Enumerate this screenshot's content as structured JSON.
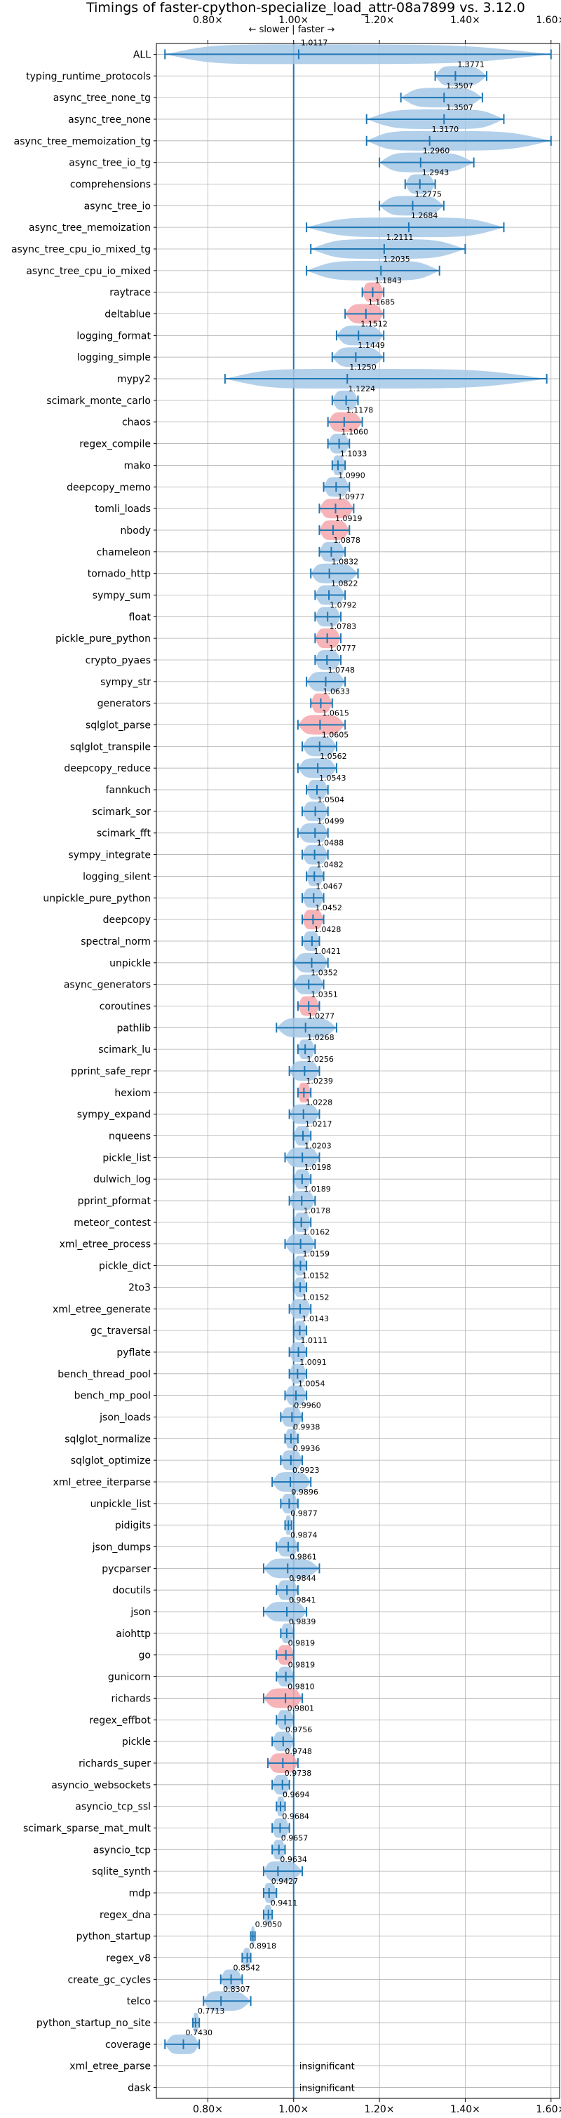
{
  "colors": {
    "faster": "#1f77b4",
    "faster_fill": "#a6c8e6",
    "slower_fill": "#f4a7ad",
    "grid": "#b0b0b0",
    "reference_line": "#1f77b4"
  },
  "chart_data": {
    "type": "violin",
    "title": "Timings of faster-cpython-specialize_load_attr-08a7899 vs. 3.12.0",
    "annotation": "← slower | faster →",
    "xlim": [
      0.68,
      1.62
    ],
    "reference_x": 1.0,
    "grid": true,
    "x_ticks": [
      0.8,
      1.0,
      1.2,
      1.4,
      1.6
    ],
    "x_tick_labels": [
      "0.80×",
      "1.00×",
      "1.20×",
      "1.40×",
      "1.60×"
    ],
    "benchmarks": [
      {
        "name": "ALL",
        "value": 1.0117,
        "label": "1.0117",
        "min": 0.7,
        "max": 1.6,
        "slower": false
      },
      {
        "name": "typing_runtime_protocols",
        "value": 1.3771,
        "label": "1.3771",
        "min": 1.33,
        "max": 1.45,
        "slower": false
      },
      {
        "name": "async_tree_none_tg",
        "value": 1.3507,
        "label": "1.3507",
        "min": 1.25,
        "max": 1.44,
        "slower": false
      },
      {
        "name": "async_tree_none",
        "value": 1.3507,
        "label": "1.3507",
        "min": 1.17,
        "max": 1.49,
        "slower": false
      },
      {
        "name": "async_tree_memoization_tg",
        "value": 1.317,
        "label": "1.3170",
        "min": 1.17,
        "max": 1.6,
        "slower": false
      },
      {
        "name": "async_tree_io_tg",
        "value": 1.296,
        "label": "1.2960",
        "min": 1.2,
        "max": 1.42,
        "slower": false
      },
      {
        "name": "comprehensions",
        "value": 1.2943,
        "label": "1.2943",
        "min": 1.26,
        "max": 1.33,
        "slower": false
      },
      {
        "name": "async_tree_io",
        "value": 1.2775,
        "label": "1.2775",
        "min": 1.2,
        "max": 1.35,
        "slower": false
      },
      {
        "name": "async_tree_memoization",
        "value": 1.2684,
        "label": "1.2684",
        "min": 1.03,
        "max": 1.49,
        "slower": false
      },
      {
        "name": "async_tree_cpu_io_mixed_tg",
        "value": 1.2111,
        "label": "1.2111",
        "min": 1.04,
        "max": 1.4,
        "slower": false
      },
      {
        "name": "async_tree_cpu_io_mixed",
        "value": 1.2035,
        "label": "1.2035",
        "min": 1.03,
        "max": 1.34,
        "slower": false
      },
      {
        "name": "raytrace",
        "value": 1.1843,
        "label": "1.1843",
        "min": 1.16,
        "max": 1.21,
        "slower": true
      },
      {
        "name": "deltablue",
        "value": 1.1685,
        "label": "1.1685",
        "min": 1.12,
        "max": 1.21,
        "slower": true
      },
      {
        "name": "logging_format",
        "value": 1.1512,
        "label": "1.1512",
        "min": 1.1,
        "max": 1.21,
        "slower": false
      },
      {
        "name": "logging_simple",
        "value": 1.1449,
        "label": "1.1449",
        "min": 1.09,
        "max": 1.21,
        "slower": false
      },
      {
        "name": "mypy2",
        "value": 1.125,
        "label": "1.1250",
        "min": 0.84,
        "max": 1.59,
        "slower": false
      },
      {
        "name": "scimark_monte_carlo",
        "value": 1.1224,
        "label": "1.1224",
        "min": 1.09,
        "max": 1.15,
        "slower": false
      },
      {
        "name": "chaos",
        "value": 1.1178,
        "label": "1.1178",
        "min": 1.08,
        "max": 1.16,
        "slower": true
      },
      {
        "name": "regex_compile",
        "value": 1.106,
        "label": "1.1060",
        "min": 1.08,
        "max": 1.13,
        "slower": false
      },
      {
        "name": "mako",
        "value": 1.1033,
        "label": "1.1033",
        "min": 1.09,
        "max": 1.12,
        "slower": false
      },
      {
        "name": "deepcopy_memo",
        "value": 1.099,
        "label": "1.0990",
        "min": 1.07,
        "max": 1.13,
        "slower": false
      },
      {
        "name": "tomli_loads",
        "value": 1.0977,
        "label": "1.0977",
        "min": 1.06,
        "max": 1.14,
        "slower": true
      },
      {
        "name": "nbody",
        "value": 1.0919,
        "label": "1.0919",
        "min": 1.06,
        "max": 1.13,
        "slower": true
      },
      {
        "name": "chameleon",
        "value": 1.0878,
        "label": "1.0878",
        "min": 1.06,
        "max": 1.12,
        "slower": false
      },
      {
        "name": "tornado_http",
        "value": 1.0832,
        "label": "1.0832",
        "min": 1.04,
        "max": 1.15,
        "slower": false
      },
      {
        "name": "sympy_sum",
        "value": 1.0822,
        "label": "1.0822",
        "min": 1.05,
        "max": 1.12,
        "slower": false
      },
      {
        "name": "float",
        "value": 1.0792,
        "label": "1.0792",
        "min": 1.05,
        "max": 1.11,
        "slower": false
      },
      {
        "name": "pickle_pure_python",
        "value": 1.0783,
        "label": "1.0783",
        "min": 1.05,
        "max": 1.11,
        "slower": true
      },
      {
        "name": "crypto_pyaes",
        "value": 1.0777,
        "label": "1.0777",
        "min": 1.05,
        "max": 1.11,
        "slower": false
      },
      {
        "name": "sympy_str",
        "value": 1.0748,
        "label": "1.0748",
        "min": 1.03,
        "max": 1.12,
        "slower": false
      },
      {
        "name": "generators",
        "value": 1.0633,
        "label": "1.0633",
        "min": 1.04,
        "max": 1.09,
        "slower": true
      },
      {
        "name": "sqlglot_parse",
        "value": 1.0615,
        "label": "1.0615",
        "min": 1.01,
        "max": 1.12,
        "slower": true
      },
      {
        "name": "sqlglot_transpile",
        "value": 1.0605,
        "label": "1.0605",
        "min": 1.02,
        "max": 1.1,
        "slower": false
      },
      {
        "name": "deepcopy_reduce",
        "value": 1.0562,
        "label": "1.0562",
        "min": 1.01,
        "max": 1.1,
        "slower": false
      },
      {
        "name": "fannkuch",
        "value": 1.0543,
        "label": "1.0543",
        "min": 1.03,
        "max": 1.08,
        "slower": false
      },
      {
        "name": "scimark_sor",
        "value": 1.0504,
        "label": "1.0504",
        "min": 1.02,
        "max": 1.08,
        "slower": false
      },
      {
        "name": "scimark_fft",
        "value": 1.0499,
        "label": "1.0499",
        "min": 1.01,
        "max": 1.08,
        "slower": false
      },
      {
        "name": "sympy_integrate",
        "value": 1.0488,
        "label": "1.0488",
        "min": 1.02,
        "max": 1.08,
        "slower": false
      },
      {
        "name": "logging_silent",
        "value": 1.0482,
        "label": "1.0482",
        "min": 1.03,
        "max": 1.07,
        "slower": false
      },
      {
        "name": "unpickle_pure_python",
        "value": 1.0467,
        "label": "1.0467",
        "min": 1.02,
        "max": 1.07,
        "slower": false
      },
      {
        "name": "deepcopy",
        "value": 1.0452,
        "label": "1.0452",
        "min": 1.02,
        "max": 1.07,
        "slower": true
      },
      {
        "name": "spectral_norm",
        "value": 1.0428,
        "label": "1.0428",
        "min": 1.02,
        "max": 1.06,
        "slower": false
      },
      {
        "name": "unpickle",
        "value": 1.0421,
        "label": "1.0421",
        "min": 1.0,
        "max": 1.08,
        "slower": false
      },
      {
        "name": "async_generators",
        "value": 1.0352,
        "label": "1.0352",
        "min": 1.0,
        "max": 1.07,
        "slower": false
      },
      {
        "name": "coroutines",
        "value": 1.0351,
        "label": "1.0351",
        "min": 1.01,
        "max": 1.06,
        "slower": true
      },
      {
        "name": "pathlib",
        "value": 1.0277,
        "label": "1.0277",
        "min": 0.96,
        "max": 1.1,
        "slower": false
      },
      {
        "name": "scimark_lu",
        "value": 1.0268,
        "label": "1.0268",
        "min": 1.01,
        "max": 1.05,
        "slower": false
      },
      {
        "name": "pprint_safe_repr",
        "value": 1.0256,
        "label": "1.0256",
        "min": 0.99,
        "max": 1.06,
        "slower": false
      },
      {
        "name": "hexiom",
        "value": 1.0239,
        "label": "1.0239",
        "min": 1.01,
        "max": 1.04,
        "slower": true
      },
      {
        "name": "sympy_expand",
        "value": 1.0228,
        "label": "1.0228",
        "min": 0.99,
        "max": 1.06,
        "slower": false
      },
      {
        "name": "nqueens",
        "value": 1.0217,
        "label": "1.0217",
        "min": 1.0,
        "max": 1.04,
        "slower": false
      },
      {
        "name": "pickle_list",
        "value": 1.0203,
        "label": "1.0203",
        "min": 0.98,
        "max": 1.06,
        "slower": false
      },
      {
        "name": "dulwich_log",
        "value": 1.0198,
        "label": "1.0198",
        "min": 1.0,
        "max": 1.04,
        "slower": false
      },
      {
        "name": "pprint_pformat",
        "value": 1.0189,
        "label": "1.0189",
        "min": 0.99,
        "max": 1.05,
        "slower": false
      },
      {
        "name": "meteor_contest",
        "value": 1.0178,
        "label": "1.0178",
        "min": 1.0,
        "max": 1.04,
        "slower": false
      },
      {
        "name": "xml_etree_process",
        "value": 1.0162,
        "label": "1.0162",
        "min": 0.98,
        "max": 1.05,
        "slower": false
      },
      {
        "name": "pickle_dict",
        "value": 1.0159,
        "label": "1.0159",
        "min": 1.0,
        "max": 1.03,
        "slower": false
      },
      {
        "name": "2to3",
        "value": 1.0152,
        "label": "1.0152",
        "min": 1.0,
        "max": 1.03,
        "slower": false
      },
      {
        "name": "xml_etree_generate",
        "value": 1.0152,
        "label": "1.0152",
        "min": 0.99,
        "max": 1.04,
        "slower": false
      },
      {
        "name": "gc_traversal",
        "value": 1.0143,
        "label": "1.0143",
        "min": 1.0,
        "max": 1.03,
        "slower": false
      },
      {
        "name": "pyflate",
        "value": 1.0111,
        "label": "1.0111",
        "min": 0.99,
        "max": 1.03,
        "slower": false
      },
      {
        "name": "bench_thread_pool",
        "value": 1.0091,
        "label": "1.0091",
        "min": 0.99,
        "max": 1.03,
        "slower": false
      },
      {
        "name": "bench_mp_pool",
        "value": 1.0054,
        "label": "1.0054",
        "min": 0.98,
        "max": 1.03,
        "slower": false
      },
      {
        "name": "json_loads",
        "value": 0.996,
        "label": "0.9960",
        "min": 0.97,
        "max": 1.02,
        "slower": false
      },
      {
        "name": "sqlglot_normalize",
        "value": 0.9938,
        "label": "0.9938",
        "min": 0.98,
        "max": 1.01,
        "slower": false
      },
      {
        "name": "sqlglot_optimize",
        "value": 0.9936,
        "label": "0.9936",
        "min": 0.97,
        "max": 1.02,
        "slower": false
      },
      {
        "name": "xml_etree_iterparse",
        "value": 0.9923,
        "label": "0.9923",
        "min": 0.95,
        "max": 1.04,
        "slower": false
      },
      {
        "name": "unpickle_list",
        "value": 0.9896,
        "label": "0.9896",
        "min": 0.97,
        "max": 1.01,
        "slower": false
      },
      {
        "name": "pidigits",
        "value": 0.9877,
        "label": "0.9877",
        "min": 0.98,
        "max": 0.995,
        "slower": false
      },
      {
        "name": "json_dumps",
        "value": 0.9874,
        "label": "0.9874",
        "min": 0.96,
        "max": 1.01,
        "slower": false
      },
      {
        "name": "pycparser",
        "value": 0.9861,
        "label": "0.9861",
        "min": 0.93,
        "max": 1.06,
        "slower": false
      },
      {
        "name": "docutils",
        "value": 0.9844,
        "label": "0.9844",
        "min": 0.96,
        "max": 1.01,
        "slower": false
      },
      {
        "name": "json",
        "value": 0.9841,
        "label": "0.9841",
        "min": 0.93,
        "max": 1.03,
        "slower": false
      },
      {
        "name": "aiohttp",
        "value": 0.9839,
        "label": "0.9839",
        "min": 0.97,
        "max": 1.0,
        "slower": false
      },
      {
        "name": "go",
        "value": 0.9819,
        "label": "0.9819",
        "min": 0.96,
        "max": 1.0,
        "slower": true
      },
      {
        "name": "gunicorn",
        "value": 0.9819,
        "label": "0.9819",
        "min": 0.96,
        "max": 1.0,
        "slower": false
      },
      {
        "name": "richards",
        "value": 0.981,
        "label": "0.9810",
        "min": 0.93,
        "max": 1.02,
        "slower": true
      },
      {
        "name": "regex_effbot",
        "value": 0.9801,
        "label": "0.9801",
        "min": 0.96,
        "max": 1.0,
        "slower": false
      },
      {
        "name": "pickle",
        "value": 0.9756,
        "label": "0.9756",
        "min": 0.95,
        "max": 1.0,
        "slower": false
      },
      {
        "name": "richards_super",
        "value": 0.9748,
        "label": "0.9748",
        "min": 0.94,
        "max": 1.01,
        "slower": true
      },
      {
        "name": "asyncio_websockets",
        "value": 0.9738,
        "label": "0.9738",
        "min": 0.95,
        "max": 0.99,
        "slower": false
      },
      {
        "name": "asyncio_tcp_ssl",
        "value": 0.9694,
        "label": "0.9694",
        "min": 0.96,
        "max": 0.98,
        "slower": false
      },
      {
        "name": "scimark_sparse_mat_mult",
        "value": 0.9684,
        "label": "0.9684",
        "min": 0.95,
        "max": 0.99,
        "slower": false
      },
      {
        "name": "asyncio_tcp",
        "value": 0.9657,
        "label": "0.9657",
        "min": 0.95,
        "max": 0.98,
        "slower": false
      },
      {
        "name": "sqlite_synth",
        "value": 0.9634,
        "label": "0.9634",
        "min": 0.93,
        "max": 1.02,
        "slower": false
      },
      {
        "name": "mdp",
        "value": 0.9427,
        "label": "0.9427",
        "min": 0.93,
        "max": 0.96,
        "slower": false
      },
      {
        "name": "regex_dna",
        "value": 0.9411,
        "label": "0.9411",
        "min": 0.93,
        "max": 0.95,
        "slower": false
      },
      {
        "name": "python_startup",
        "value": 0.905,
        "label": "0.9050",
        "min": 0.9,
        "max": 0.91,
        "slower": false
      },
      {
        "name": "regex_v8",
        "value": 0.8918,
        "label": "0.8918",
        "min": 0.88,
        "max": 0.9,
        "slower": false
      },
      {
        "name": "create_gc_cycles",
        "value": 0.8542,
        "label": "0.8542",
        "min": 0.83,
        "max": 0.88,
        "slower": false
      },
      {
        "name": "telco",
        "value": 0.8307,
        "label": "0.8307",
        "min": 0.79,
        "max": 0.9,
        "slower": false
      },
      {
        "name": "python_startup_no_site",
        "value": 0.7713,
        "label": "0.7713",
        "min": 0.765,
        "max": 0.78,
        "slower": false
      },
      {
        "name": "coverage",
        "value": 0.743,
        "label": "0.7430",
        "min": 0.7,
        "max": 0.78,
        "slower": false
      },
      {
        "name": "xml_etree_parse",
        "value": null,
        "label": "insignificant",
        "insignificant": true
      },
      {
        "name": "dask",
        "value": null,
        "label": "insignificant",
        "insignificant": true
      }
    ]
  }
}
